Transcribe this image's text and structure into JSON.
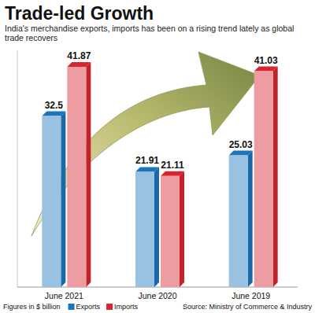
{
  "chart_data": {
    "type": "bar",
    "title": "Trade-led Growth",
    "subtitle": "India's merchandise exports, imports has been on a rising trend lately as global trade recovers",
    "categories": [
      "June 2021",
      "June 2020",
      "June 2019"
    ],
    "series": [
      {
        "name": "Exports",
        "color": "#1c75bc",
        "values": [
          32.5,
          21.91,
          25.03
        ]
      },
      {
        "name": "Imports",
        "color": "#d7262f",
        "values": [
          41.87,
          21.11,
          41.03
        ]
      }
    ],
    "ylim": [
      0,
      45
    ],
    "y_label": "Figures in $ billion",
    "source": "Source: Ministry of Commerce & Industry",
    "legend": "bottom",
    "data_labels": true,
    "tick_labels": "x",
    "grid": false
  }
}
